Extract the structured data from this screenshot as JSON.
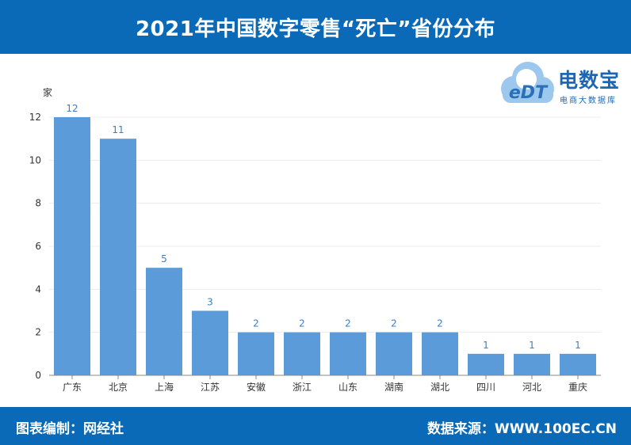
{
  "header": {
    "title": "2021年中国数字零售“死亡”省份分布"
  },
  "footer": {
    "editor": "图表编制：网经社",
    "source": "数据来源：WWW.100EC.CN"
  },
  "logo": {
    "brand": "电数宝",
    "subtitle": "电商大数据库",
    "mark": "eDT"
  },
  "colors": {
    "header_bg": "#0a6ab8",
    "bar": "#5b9bd9",
    "label": "#3d7fc1"
  },
  "chart_data": {
    "type": "bar",
    "title": "",
    "xlabel": "",
    "ylabel": "家",
    "categories": [
      "广东",
      "北京",
      "上海",
      "江苏",
      "安徽",
      "浙江",
      "山东",
      "湖南",
      "湖北",
      "四川",
      "河北",
      "重庆"
    ],
    "values": [
      12,
      11,
      5,
      3,
      2,
      2,
      2,
      2,
      2,
      1,
      1,
      1
    ],
    "ylim": [
      0,
      12
    ],
    "yticks": [
      0,
      2,
      4,
      6,
      8,
      10,
      12
    ],
    "grid": true,
    "legend": "none"
  }
}
